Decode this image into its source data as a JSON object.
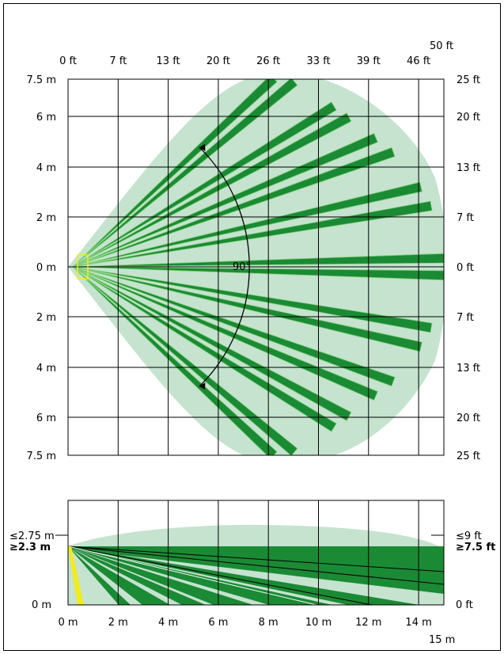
{
  "top_view": {
    "ft_top_labels": [
      "0 ft",
      "7 ft",
      "13 ft",
      "20 ft",
      "26 ft",
      "33 ft",
      "39 ft",
      "46 ft"
    ],
    "ft_top_extra": "50 ft",
    "m_left_labels": [
      "7.5 m",
      "6 m",
      "4 m",
      "2 m",
      "0 m",
      "2 m",
      "4 m",
      "6 m",
      "7.5 m"
    ],
    "ft_right_labels": [
      "25 ft",
      "20 ft",
      "13 ft",
      "7 ft",
      "0 ft",
      "7 ft",
      "13 ft",
      "20 ft",
      "25 ft"
    ],
    "angle_label": "90°"
  },
  "side_view": {
    "height_max_m": "≤2.75 m",
    "height_min_m": "≥2.3 m",
    "height_zero_m": "0 m",
    "height_max_ft": "≤9 ft",
    "height_min_ft": "≥7.5 ft",
    "height_zero_ft": "0 ft",
    "x_labels": [
      "0 m",
      "2 m",
      "4 m",
      "6 m",
      "8 m",
      "10 m",
      "12 m",
      "14 m"
    ],
    "x_extra": "15 m"
  },
  "colors": {
    "coverage_light": "#c5e3cf",
    "zone_dark": "#1b8a35",
    "zone_edge": "#7ccf72",
    "sensor": "#f2ec1c"
  }
}
